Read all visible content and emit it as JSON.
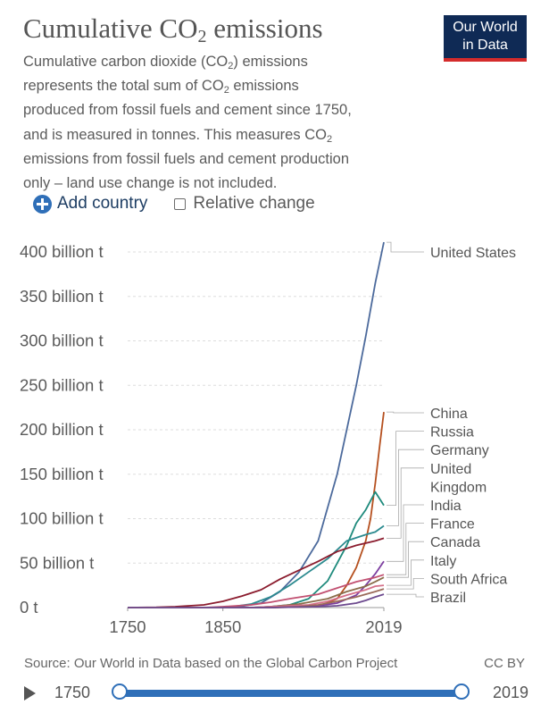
{
  "header": {
    "title_text": "Cumulative CO",
    "title_sub": "2",
    "title_suffix": " emissions",
    "subtitle_lines": [
      [
        "Cumulative carbon dioxide (CO",
        "2",
        ") emissions"
      ],
      [
        "represents the total sum of CO",
        "2",
        " emissions"
      ],
      [
        "produced from fossil fuels and cement since 1750,",
        "",
        ""
      ],
      [
        "and is measured in tonnes. This measures CO",
        "2",
        ""
      ],
      [
        "emissions from fossil fuels and cement production",
        "",
        ""
      ],
      [
        "only – land use change is not included.",
        "",
        ""
      ]
    ],
    "logo_line1": "Our World",
    "logo_line2": "in Data"
  },
  "controls": {
    "add_country_label": "Add country",
    "relative_change_label": "Relative change",
    "relative_change_checked": false
  },
  "footer": {
    "source": "Source: Our World in Data based on the Global Carbon Project",
    "license": "CC BY"
  },
  "timeline": {
    "start_year": "1750",
    "end_year": "2019"
  },
  "colors": {
    "United States": "#4c6a9c",
    "China": "#b5501f",
    "Russia": "#1e8a7c",
    "Germany": "#2b8a8f",
    "United Kingdom": "#8b1c2e",
    "India": "#7d3fa0",
    "France": "#c15071",
    "Canada": "#8a6d4a",
    "Italy": "#d46f88",
    "South Africa": "#9b6b5a",
    "Brazil": "#6d4a8f"
  },
  "chart_data": {
    "type": "line",
    "title": "Cumulative CO2 emissions",
    "ylim": [
      0,
      400
    ],
    "xlim": [
      1750,
      2019
    ],
    "x_ticks": [
      "1750",
      "1850",
      "2019"
    ],
    "y_ticks": [
      "0 t",
      "50 billion t",
      "100 billion t",
      "150 billion t",
      "200 billion t",
      "250 billion t",
      "300 billion t",
      "350 billion t",
      "400 billion t"
    ],
    "y_tick_values": [
      0,
      50,
      100,
      150,
      200,
      250,
      300,
      350,
      400
    ],
    "grid": true,
    "legend_placement": "right",
    "series": [
      {
        "name": "United States",
        "points": [
          [
            1750,
            0
          ],
          [
            1800,
            0
          ],
          [
            1850,
            0.2
          ],
          [
            1870,
            1.5
          ],
          [
            1890,
            5
          ],
          [
            1910,
            18
          ],
          [
            1930,
            40
          ],
          [
            1950,
            75
          ],
          [
            1970,
            150
          ],
          [
            1990,
            250
          ],
          [
            2000,
            305
          ],
          [
            2010,
            365
          ],
          [
            2019,
            411
          ]
        ]
      },
      {
        "name": "China",
        "points": [
          [
            1750,
            0
          ],
          [
            1900,
            0
          ],
          [
            1950,
            1
          ],
          [
            1970,
            10
          ],
          [
            1980,
            25
          ],
          [
            1990,
            45
          ],
          [
            2000,
            75
          ],
          [
            2005,
            100
          ],
          [
            2010,
            140
          ],
          [
            2015,
            185
          ],
          [
            2019,
            220
          ]
        ]
      },
      {
        "name": "Russia",
        "points": [
          [
            1750,
            0
          ],
          [
            1880,
            0
          ],
          [
            1900,
            1
          ],
          [
            1920,
            3
          ],
          [
            1940,
            10
          ],
          [
            1960,
            30
          ],
          [
            1980,
            70
          ],
          [
            1990,
            95
          ],
          [
            2000,
            110
          ],
          [
            2010,
            130
          ],
          [
            2019,
            115
          ]
        ]
      },
      {
        "name": "Germany",
        "points": [
          [
            1750,
            0
          ],
          [
            1840,
            0
          ],
          [
            1860,
            1
          ],
          [
            1880,
            4
          ],
          [
            1900,
            12
          ],
          [
            1920,
            25
          ],
          [
            1940,
            40
          ],
          [
            1960,
            55
          ],
          [
            1980,
            75
          ],
          [
            2000,
            82
          ],
          [
            2010,
            85
          ],
          [
            2019,
            92
          ]
        ]
      },
      {
        "name": "United Kingdom",
        "points": [
          [
            1750,
            0
          ],
          [
            1780,
            0.3
          ],
          [
            1800,
            1
          ],
          [
            1830,
            3
          ],
          [
            1850,
            7
          ],
          [
            1870,
            13
          ],
          [
            1890,
            20
          ],
          [
            1910,
            32
          ],
          [
            1930,
            42
          ],
          [
            1950,
            52
          ],
          [
            1970,
            63
          ],
          [
            1990,
            70
          ],
          [
            2010,
            75
          ],
          [
            2019,
            78
          ]
        ]
      },
      {
        "name": "India",
        "points": [
          [
            1750,
            0
          ],
          [
            1900,
            0
          ],
          [
            1950,
            2
          ],
          [
            1970,
            5
          ],
          [
            1990,
            14
          ],
          [
            2000,
            25
          ],
          [
            2010,
            38
          ],
          [
            2019,
            52
          ]
        ]
      },
      {
        "name": "France",
        "points": [
          [
            1750,
            0
          ],
          [
            1830,
            0
          ],
          [
            1850,
            1
          ],
          [
            1880,
            3
          ],
          [
            1900,
            6
          ],
          [
            1920,
            10
          ],
          [
            1950,
            15
          ],
          [
            1970,
            22
          ],
          [
            1990,
            29
          ],
          [
            2010,
            34
          ],
          [
            2019,
            37
          ]
        ]
      },
      {
        "name": "Canada",
        "points": [
          [
            1750,
            0
          ],
          [
            1880,
            0
          ],
          [
            1900,
            1
          ],
          [
            1930,
            4
          ],
          [
            1960,
            10
          ],
          [
            1980,
            18
          ],
          [
            2000,
            24
          ],
          [
            2010,
            29
          ],
          [
            2019,
            34
          ]
        ]
      },
      {
        "name": "Italy",
        "points": [
          [
            1750,
            0
          ],
          [
            1880,
            0
          ],
          [
            1900,
            1
          ],
          [
            1940,
            3
          ],
          [
            1960,
            7
          ],
          [
            1980,
            14
          ],
          [
            2000,
            20
          ],
          [
            2010,
            24
          ],
          [
            2019,
            25
          ]
        ]
      },
      {
        "name": "South Africa",
        "points": [
          [
            1750,
            0
          ],
          [
            1900,
            0
          ],
          [
            1930,
            1
          ],
          [
            1950,
            3
          ],
          [
            1970,
            7
          ],
          [
            1990,
            12
          ],
          [
            2000,
            15
          ],
          [
            2010,
            18
          ],
          [
            2019,
            21
          ]
        ]
      },
      {
        "name": "Brazil",
        "points": [
          [
            1750,
            0
          ],
          [
            1900,
            0
          ],
          [
            1950,
            1
          ],
          [
            1970,
            2
          ],
          [
            1990,
            5
          ],
          [
            2000,
            8
          ],
          [
            2010,
            12
          ],
          [
            2019,
            15
          ]
        ]
      }
    ],
    "legend_entries": [
      {
        "name": "United States",
        "lines": [
          "United States"
        ]
      },
      {
        "name": "China",
        "lines": [
          "China"
        ]
      },
      {
        "name": "Russia",
        "lines": [
          "Russia"
        ]
      },
      {
        "name": "Germany",
        "lines": [
          "Germany"
        ]
      },
      {
        "name": "United Kingdom",
        "lines": [
          "United",
          "Kingdom"
        ]
      },
      {
        "name": "India",
        "lines": [
          "India"
        ]
      },
      {
        "name": "France",
        "lines": [
          "France"
        ]
      },
      {
        "name": "Canada",
        "lines": [
          "Canada"
        ]
      },
      {
        "name": "Italy",
        "lines": [
          "Italy"
        ]
      },
      {
        "name": "South Africa",
        "lines": [
          "South Africa"
        ]
      },
      {
        "name": "Brazil",
        "lines": [
          "Brazil"
        ]
      }
    ]
  }
}
